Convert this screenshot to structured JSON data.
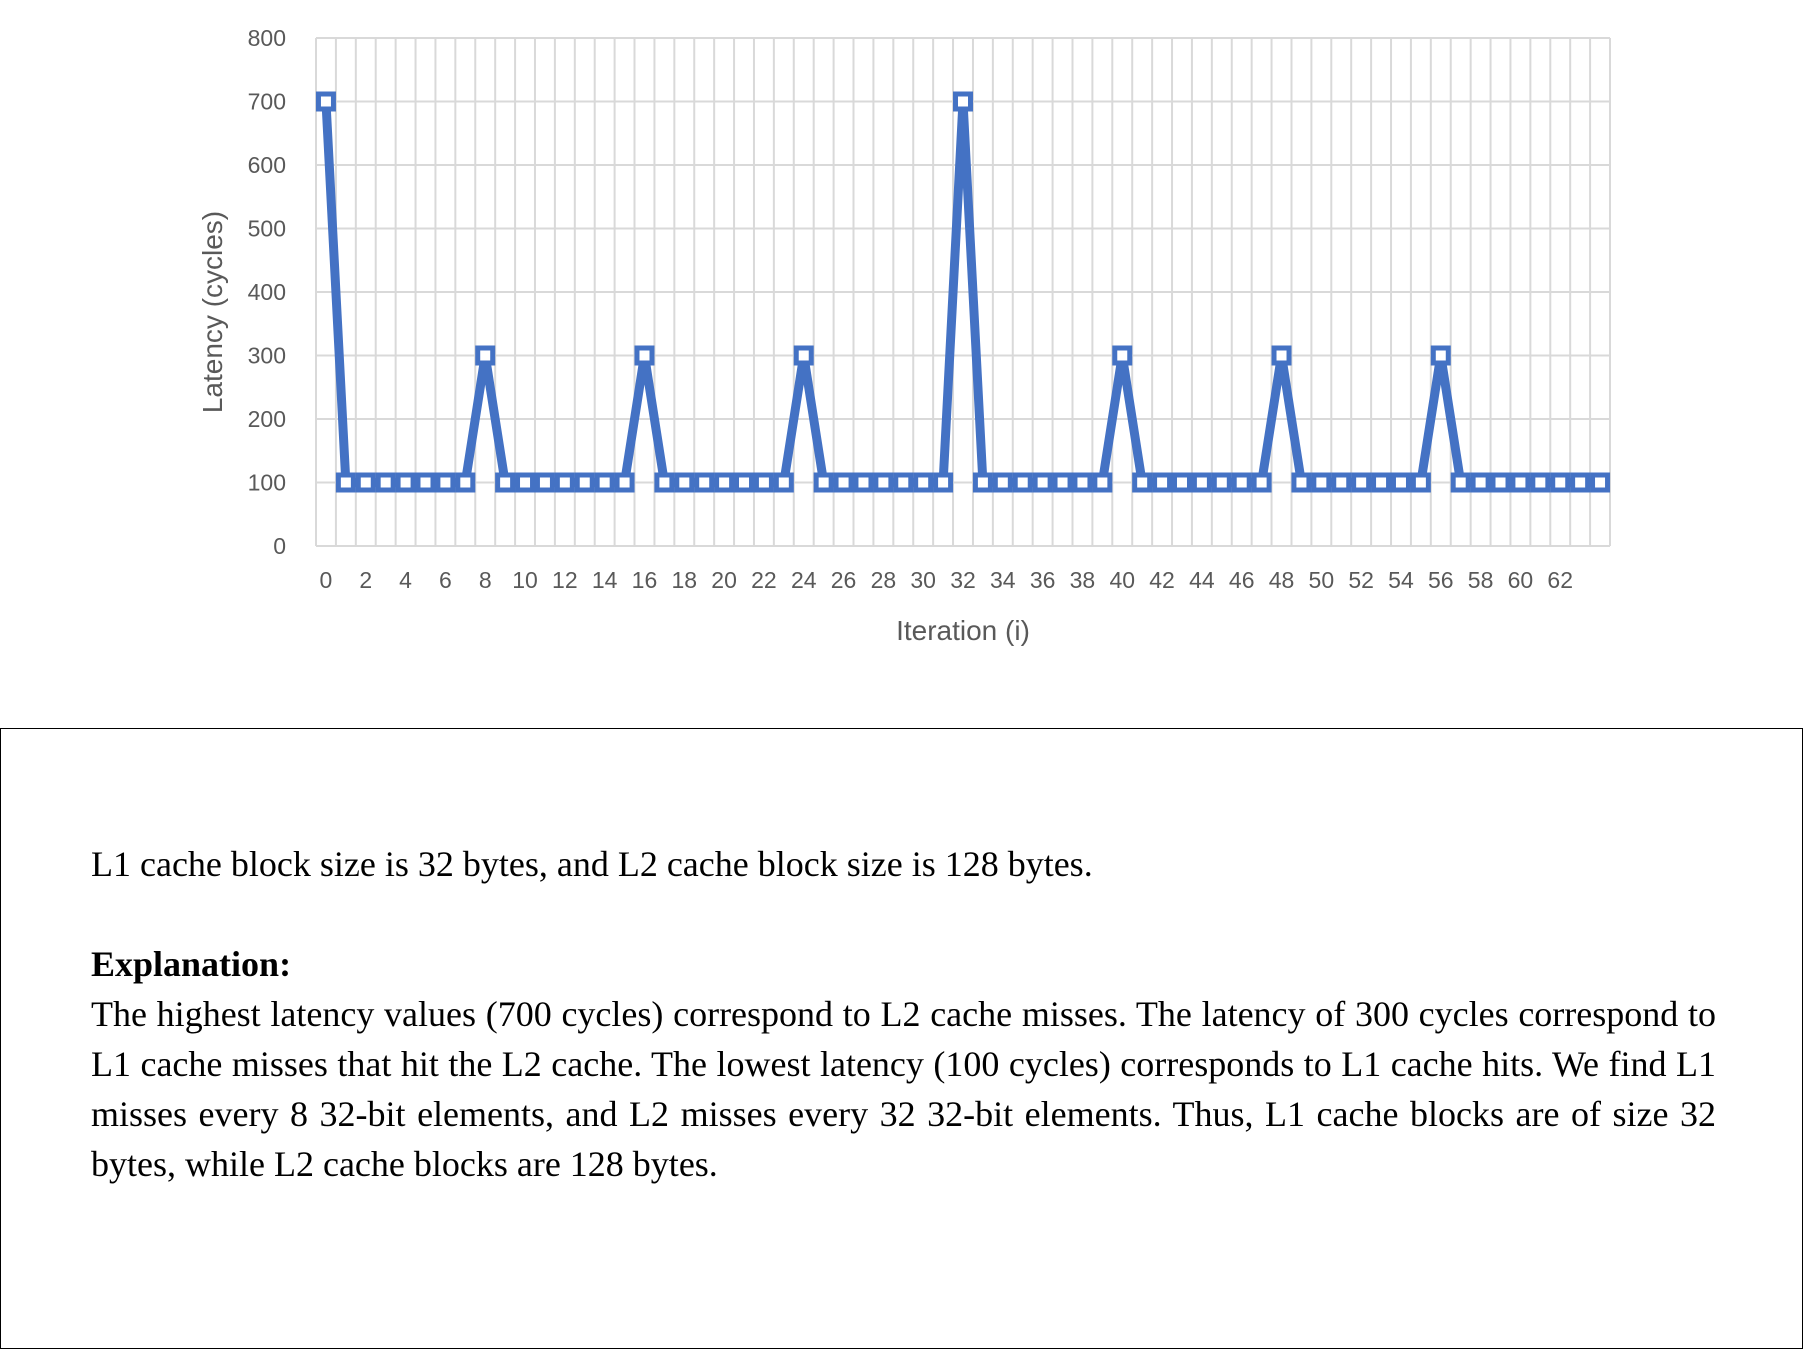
{
  "chart_data": {
    "type": "line",
    "xlabel": "Iteration (i)",
    "ylabel": "Latency (cycles)",
    "ylim": [
      0,
      800
    ],
    "yticks": [
      0,
      100,
      200,
      300,
      400,
      500,
      600,
      700,
      800
    ],
    "xticks": [
      0,
      2,
      4,
      6,
      8,
      10,
      12,
      14,
      16,
      18,
      20,
      22,
      24,
      26,
      28,
      30,
      32,
      34,
      36,
      38,
      40,
      42,
      44,
      46,
      48,
      50,
      52,
      54,
      56,
      58,
      60,
      62
    ],
    "x": [
      0,
      1,
      2,
      3,
      4,
      5,
      6,
      7,
      8,
      9,
      10,
      11,
      12,
      13,
      14,
      15,
      16,
      17,
      18,
      19,
      20,
      21,
      22,
      23,
      24,
      25,
      26,
      27,
      28,
      29,
      30,
      31,
      32,
      33,
      34,
      35,
      36,
      37,
      38,
      39,
      40,
      41,
      42,
      43,
      44,
      45,
      46,
      47,
      48,
      49,
      50,
      51,
      52,
      53,
      54,
      55,
      56,
      57,
      58,
      59,
      60,
      61,
      62,
      63,
      64
    ],
    "series": [
      {
        "values": [
          700,
          100,
          100,
          100,
          100,
          100,
          100,
          100,
          300,
          100,
          100,
          100,
          100,
          100,
          100,
          100,
          300,
          100,
          100,
          100,
          100,
          100,
          100,
          100,
          300,
          100,
          100,
          100,
          100,
          100,
          100,
          100,
          700,
          100,
          100,
          100,
          100,
          100,
          100,
          100,
          300,
          100,
          100,
          100,
          100,
          100,
          100,
          100,
          300,
          100,
          100,
          100,
          100,
          100,
          100,
          100,
          300,
          100,
          100,
          100,
          100,
          100,
          100,
          100,
          100
        ],
        "color": "#4472C4",
        "marker": "square"
      }
    ],
    "grid": true
  },
  "answer": {
    "line": "L1 cache block size is 32 bytes, and L2 cache block size is 128 bytes.",
    "heading": "Explanation:",
    "text": "The highest latency values (700 cycles) correspond to L2 cache misses. The latency of 300 cycles correspond to L1 cache misses that hit the L2 cache. The lowest latency (100 cycles) corresponds to L1 cache hits. We find L1 misses every 8 32-bit elements, and L2 misses every 32 32-bit elements. Thus, L1 cache blocks are of size 32 bytes, while L2 cache blocks are 128 bytes."
  }
}
